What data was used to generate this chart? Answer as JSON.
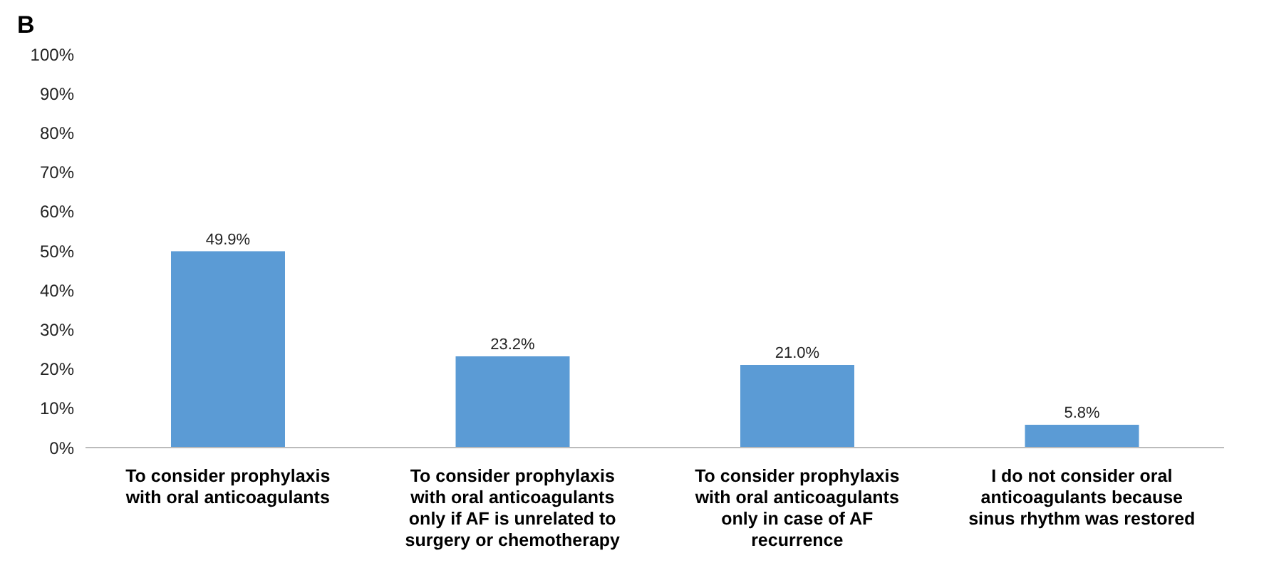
{
  "chart_data": {
    "type": "bar",
    "title": "B",
    "categories": [
      "To consider prophylaxis with oral anticoagulants",
      "To consider prophylaxis with oral anticoagulants only if AF is unrelated to surgery or chemotherapy",
      "To consider prophylaxis with oral anticoagulants only in case of AF recurrence",
      "I do not consider oral anticoagulants because sinus rhythm was restored"
    ],
    "values": [
      49.9,
      23.2,
      21.0,
      5.8
    ],
    "value_labels": [
      "49.9%",
      "23.2%",
      "21.0%",
      "5.8%"
    ],
    "color": "#5b9bd5",
    "ylim": [
      0,
      100
    ],
    "yticks": [
      {
        "value": 0,
        "label": "0%"
      },
      {
        "value": 10,
        "label": "10%"
      },
      {
        "value": 20,
        "label": "20%"
      },
      {
        "value": 30,
        "label": "30%"
      },
      {
        "value": 40,
        "label": "40%"
      },
      {
        "value": 50,
        "label": "50%"
      },
      {
        "value": 60,
        "label": "60%"
      },
      {
        "value": 70,
        "label": "70%"
      },
      {
        "value": 80,
        "label": "80%"
      },
      {
        "value": 90,
        "label": "90%"
      },
      {
        "value": 100,
        "label": "100%"
      }
    ],
    "grid": false,
    "legend": false
  }
}
